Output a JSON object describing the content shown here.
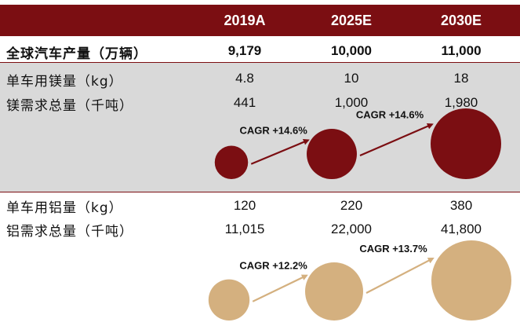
{
  "chart_data": {
    "type": "table",
    "columns": [
      "2019A",
      "2025E",
      "2030E"
    ],
    "rows": [
      {
        "label": "全球汽车产量（万辆）",
        "values": [
          "9,179",
          "10,000",
          "11,000"
        ],
        "bold": true
      },
      {
        "label": "单车用镁量（kg）",
        "values": [
          "4.8",
          "10",
          "18"
        ]
      },
      {
        "label": "镁需求总量（千吨）",
        "values": [
          "441",
          "1,000",
          "1,980"
        ]
      },
      {
        "label": "单车用铝量（kg）",
        "values": [
          "120",
          "220",
          "380"
        ]
      },
      {
        "label": "铝需求总量（千吨）",
        "values": [
          "11,015",
          "22,000",
          "41,800"
        ]
      }
    ],
    "bubbles": {
      "magnesium": {
        "values": [
          441,
          1000,
          1980
        ],
        "color": "#7b0e12",
        "cagr_labels": [
          "CAGR +14.6%",
          "CAGR +14.6%"
        ]
      },
      "aluminum": {
        "values": [
          11015,
          22000,
          41800
        ],
        "color": "#d4b07f",
        "cagr_labels": [
          "CAGR +12.2%",
          "CAGR +13.7%"
        ]
      }
    }
  }
}
